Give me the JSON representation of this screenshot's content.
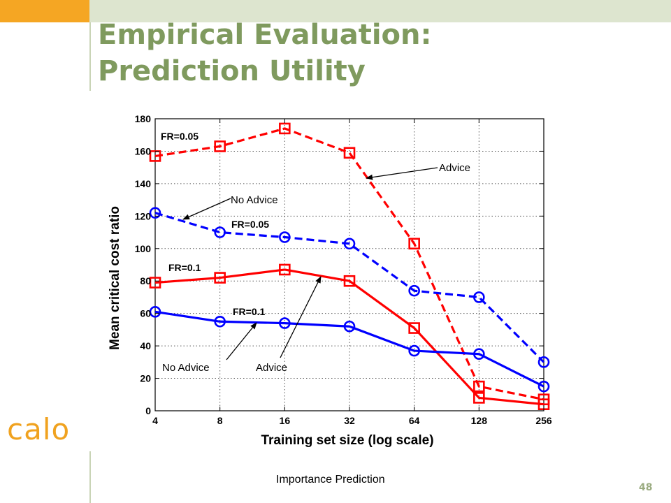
{
  "slide": {
    "title_line1": "Empirical Evaluation:",
    "title_line2": "Prediction Utility",
    "logo_text": "calo",
    "footer": "Importance Prediction",
    "page_number": "48",
    "colors": {
      "accent_bar": "#f5a623",
      "header_band": "#dde5cf",
      "title": "#7f9a5e",
      "logo": "#f0a21f"
    }
  },
  "chart_data": {
    "type": "line",
    "x_scale": "log2",
    "xlabel": "Training set size (log scale)",
    "ylabel": "Mean critical cost ratio",
    "x": [
      4,
      8,
      16,
      32,
      64,
      128,
      256
    ],
    "xticks": [
      "4",
      "8",
      "16",
      "32",
      "64",
      "128",
      "256"
    ],
    "ylim": [
      0,
      180
    ],
    "yticks": [
      "0",
      "20",
      "40",
      "60",
      "80",
      "100",
      "120",
      "140",
      "160",
      "180"
    ],
    "grid": true,
    "series": [
      {
        "values": [
          157,
          163,
          174,
          159,
          103,
          15,
          7
        ],
        "color": "#ff0000",
        "dash": "dashed",
        "marker": "square"
      },
      {
        "values": [
          122,
          110,
          107,
          103,
          74,
          70,
          30
        ],
        "color": "#0000ff",
        "dash": "dashed",
        "marker": "circle"
      },
      {
        "values": [
          79,
          82,
          87,
          80,
          51,
          8,
          4
        ],
        "color": "#ff0000",
        "dash": "solid",
        "marker": "square"
      },
      {
        "values": [
          61,
          55,
          54,
          52,
          37,
          35,
          15
        ],
        "color": "#0000ff",
        "dash": "solid",
        "marker": "circle"
      }
    ],
    "annotations": {
      "fr005_red": "FR=0.05",
      "fr005_blue": "FR=0.05",
      "fr01_red": "FR=0.1",
      "fr01_blue": "FR=0.1",
      "advice_top": "Advice",
      "noadvice_top": "No Advice",
      "noadvice_bottom": "No Advice",
      "advice_bottom": "Advice"
    }
  }
}
